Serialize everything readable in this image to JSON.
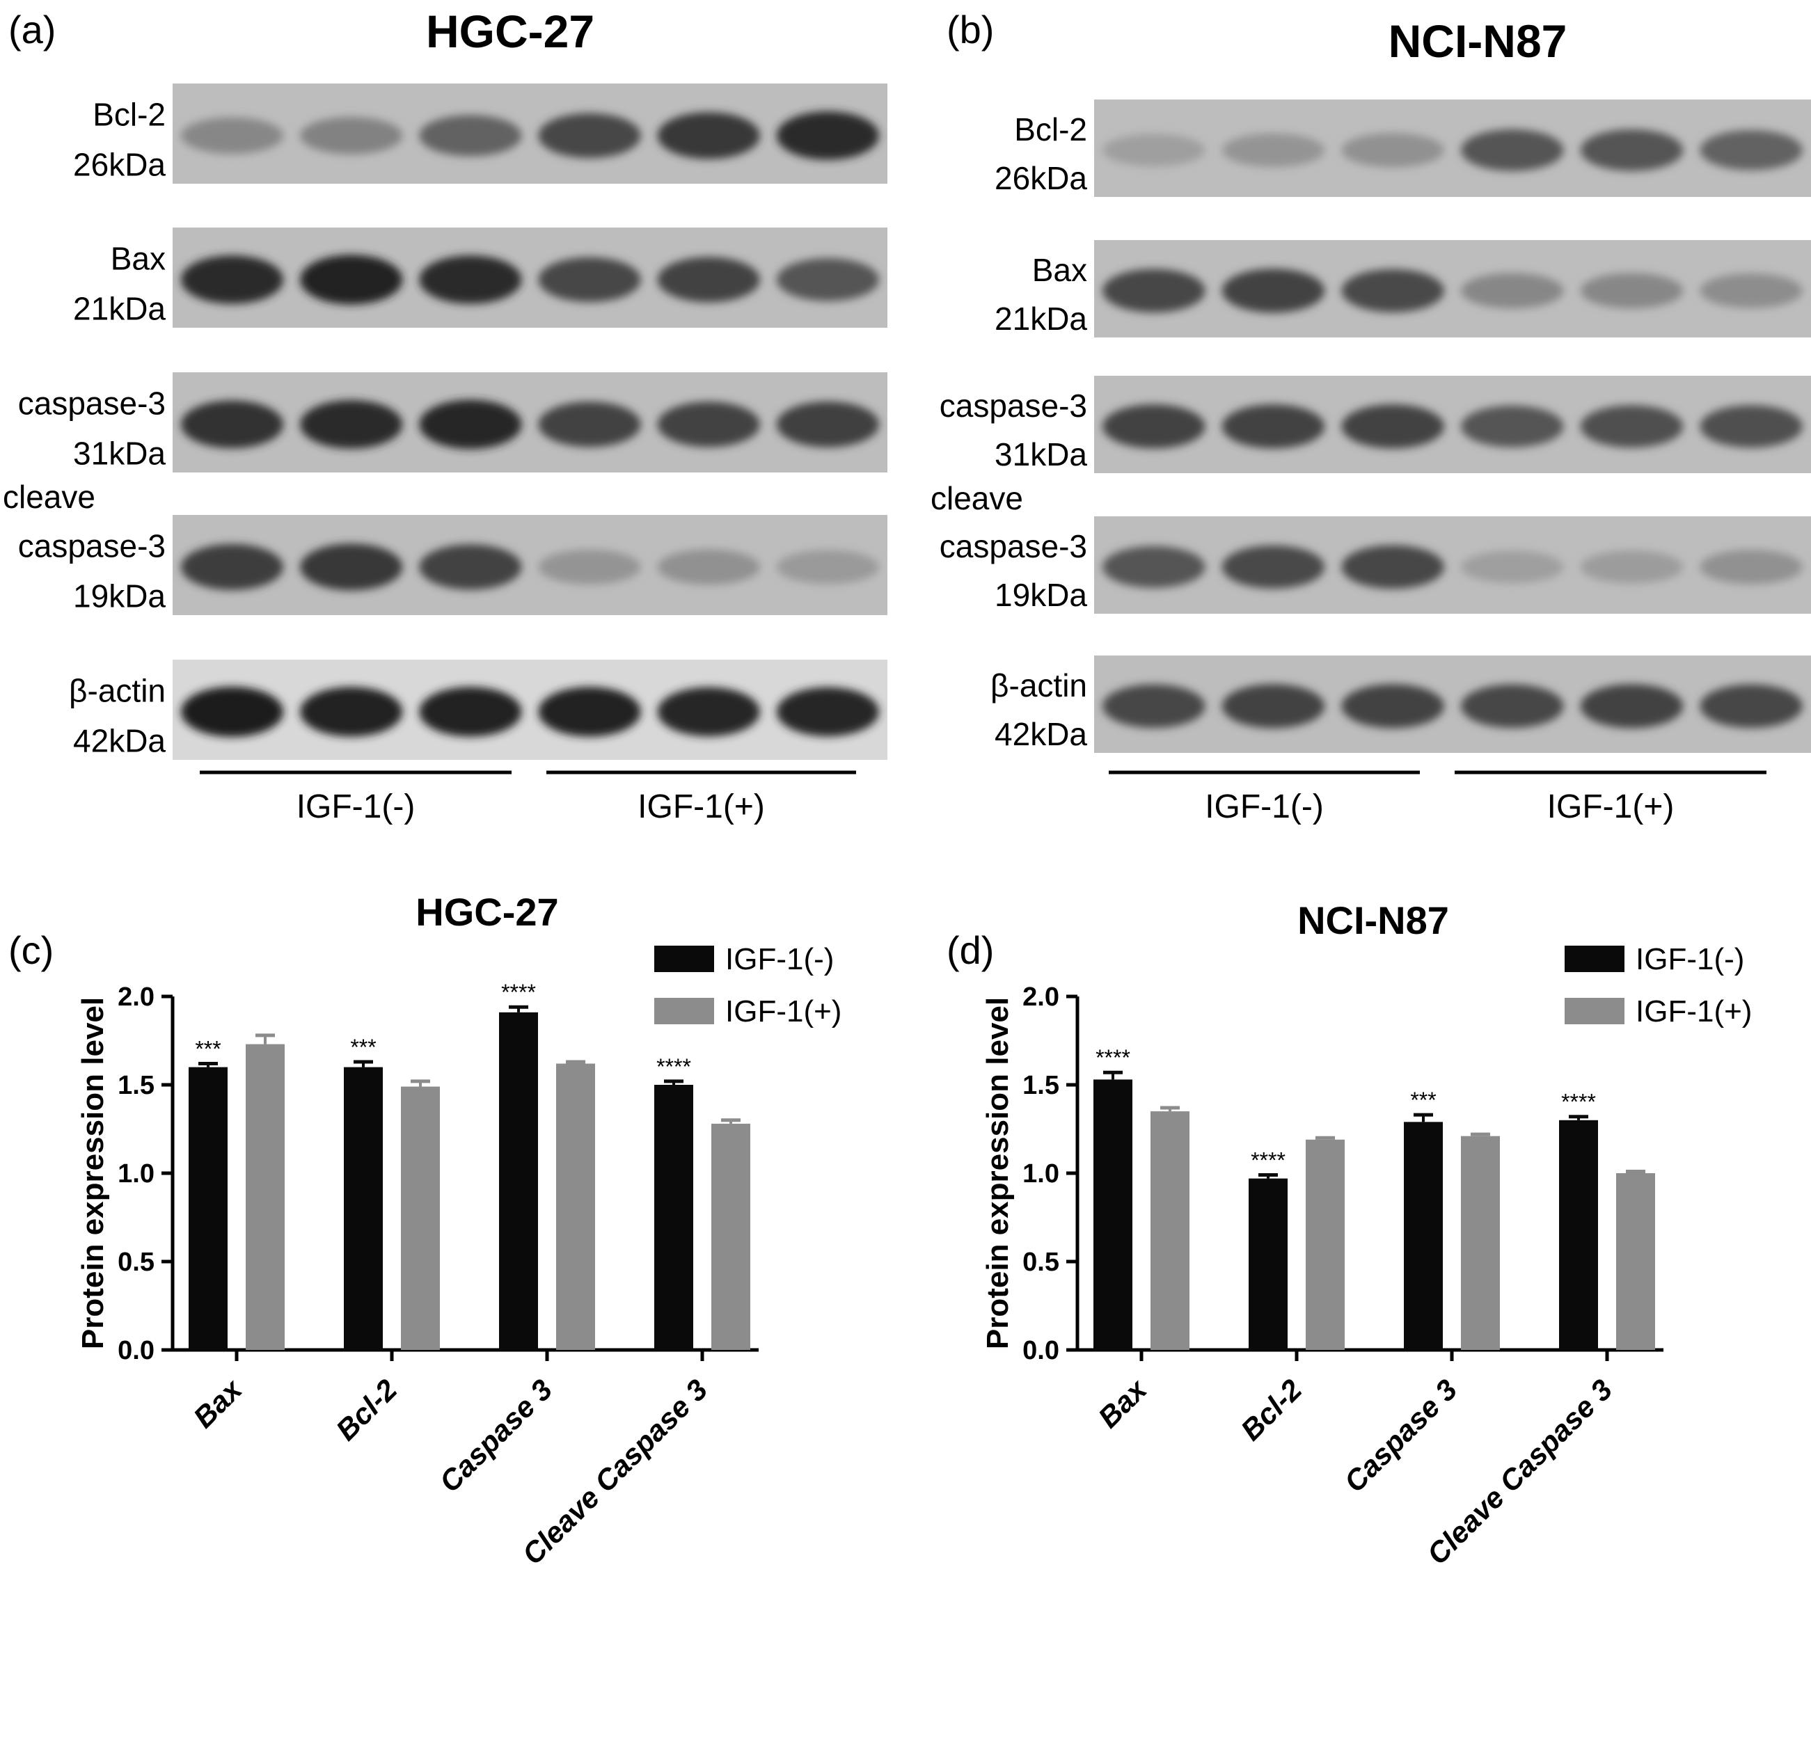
{
  "colors": {
    "series_neg": "#0a0a0a",
    "series_pos": "#8c8c8c",
    "axis": "#000000"
  },
  "blots": [
    {
      "letter": "(a)",
      "title": "HGC-27",
      "rows": [
        {
          "line1": "",
          "line2": "Bcl-2",
          "line3": "26kDa",
          "intensities": [
            0.35,
            0.38,
            0.55,
            0.7,
            0.78,
            0.85
          ]
        },
        {
          "line1": "",
          "line2": "Bax",
          "line3": "21kDa",
          "intensities": [
            0.85,
            0.9,
            0.85,
            0.7,
            0.72,
            0.62
          ]
        },
        {
          "line1": "",
          "line2": "caspase-3",
          "line3": "31kDa",
          "intensities": [
            0.82,
            0.85,
            0.88,
            0.72,
            0.72,
            0.74
          ]
        },
        {
          "line1": "cleave",
          "line2": "caspase-3",
          "line3": "19kDa",
          "intensities": [
            0.75,
            0.78,
            0.72,
            0.28,
            0.3,
            0.25
          ]
        },
        {
          "line1": "",
          "line2": "β-actin",
          "line3": "42kDa",
          "intensities": [
            0.92,
            0.9,
            0.9,
            0.9,
            0.88,
            0.88
          ]
        }
      ],
      "groups": [
        "IGF-1(-)",
        "IGF-1(+)"
      ]
    },
    {
      "letter": "(b)",
      "title": "NCI-N87",
      "rows": [
        {
          "line1": "",
          "line2": "Bcl-2",
          "line3": "26kDa",
          "intensities": [
            0.22,
            0.28,
            0.3,
            0.62,
            0.62,
            0.55
          ]
        },
        {
          "line1": "",
          "line2": "Bax",
          "line3": "21kDa",
          "intensities": [
            0.7,
            0.72,
            0.68,
            0.35,
            0.35,
            0.32
          ]
        },
        {
          "line1": "",
          "line2": "caspase-3",
          "line3": "31kDa",
          "intensities": [
            0.72,
            0.72,
            0.72,
            0.62,
            0.65,
            0.65
          ]
        },
        {
          "line1": "cleave",
          "line2": "caspase-3",
          "line3": "19kDa",
          "intensities": [
            0.62,
            0.68,
            0.7,
            0.22,
            0.24,
            0.3
          ]
        },
        {
          "line1": "",
          "line2": "β-actin",
          "line3": "42kDa",
          "intensities": [
            0.7,
            0.72,
            0.72,
            0.7,
            0.72,
            0.7
          ]
        }
      ],
      "groups": [
        "IGF-1(-)",
        "IGF-1(+)"
      ]
    }
  ],
  "chart_data": [
    {
      "type": "bar",
      "panel": "(c)",
      "title": "HGC-27",
      "ylabel": "Protein expression level",
      "xlabel": "",
      "ylim": [
        0,
        2.0
      ],
      "yticks": [
        "0.0",
        "0.5",
        "1.0",
        "1.5",
        "2.0"
      ],
      "categories": [
        "Bax",
        "Bcl-2",
        "Caspase 3",
        "Cleave Caspase 3"
      ],
      "legend_position": "top-right",
      "series": [
        {
          "name": "IGF-1(-)",
          "values": [
            1.6,
            1.6,
            1.91,
            1.5
          ],
          "errors": [
            0.02,
            0.03,
            0.03,
            0.02
          ],
          "sig": [
            "***",
            "***",
            "****",
            "****"
          ]
        },
        {
          "name": "IGF-1(+)",
          "values": [
            1.73,
            1.49,
            1.62,
            1.28
          ],
          "errors": [
            0.05,
            0.03,
            0.01,
            0.02
          ],
          "sig": [
            "",
            "",
            "",
            ""
          ]
        }
      ]
    },
    {
      "type": "bar",
      "panel": "(d)",
      "title": "NCI-N87",
      "ylabel": "Protein expression level",
      "xlabel": "",
      "ylim": [
        0,
        2.0
      ],
      "yticks": [
        "0.0",
        "0.5",
        "1.0",
        "1.5",
        "2.0"
      ],
      "categories": [
        "Bax",
        "Bcl-2",
        "Caspase 3",
        "Cleave Caspase 3"
      ],
      "legend_position": "top-right",
      "series": [
        {
          "name": "IGF-1(-)",
          "values": [
            1.53,
            0.97,
            1.29,
            1.3
          ],
          "errors": [
            0.04,
            0.02,
            0.04,
            0.02
          ],
          "sig": [
            "****",
            "****",
            "***",
            "****"
          ]
        },
        {
          "name": "IGF-1(+)",
          "values": [
            1.35,
            1.19,
            1.21,
            1.0
          ],
          "errors": [
            0.02,
            0.01,
            0.01,
            0.01
          ],
          "sig": [
            "",
            "",
            "",
            ""
          ]
        }
      ]
    }
  ]
}
